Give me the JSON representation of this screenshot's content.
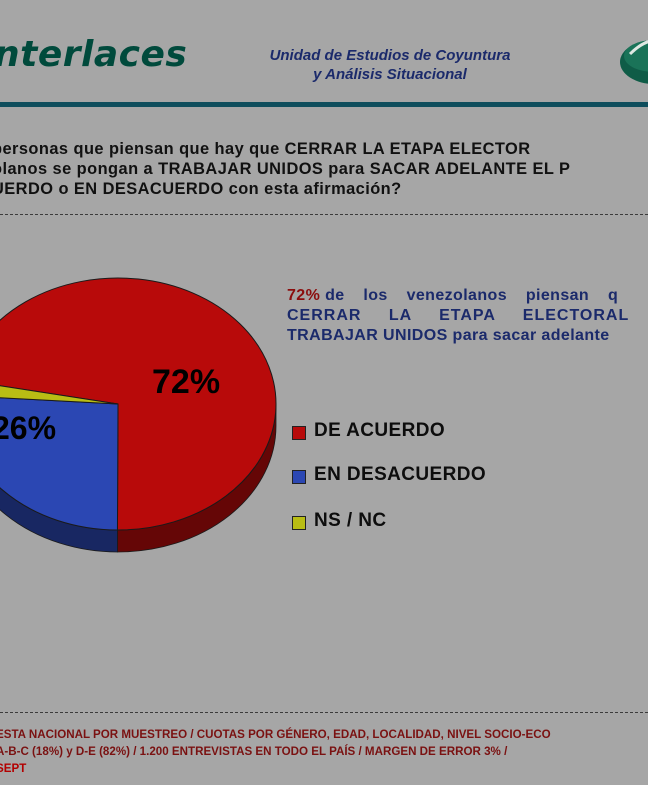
{
  "header": {
    "logo_text": "nterlaces",
    "unit_line1": "Unidad de Estudios de Coyuntura",
    "unit_line2": "y Análisis Situacional"
  },
  "question": {
    "line1": "personas que piensan que hay que CERRAR LA ETAPA ELECTOR",
    "line2": "olanos se pongan a TRABAJAR UNIDOS para SACAR ADELANTE EL P",
    "line3": "UERDO o EN DESACUERDO con esta afirmación?"
  },
  "annotation": {
    "percent": "72%",
    "line1_rest": "de los venezolanos piensan q",
    "line2": "CERRAR LA ETAPA ELECTORAL y",
    "line3": "TRABAJAR UNIDOS para sacar adelante"
  },
  "colors": {
    "background": "#a6a6a6",
    "de_acuerdo": "#b80a0a",
    "en_desacuerdo": "#2b47b3",
    "ns_nc": "#b9bd14",
    "header_rule": "#0e4d5c",
    "footer_text": "#7a1111"
  },
  "chart_data": {
    "type": "pie",
    "slices": [
      {
        "label": "DE ACUERDO",
        "value": 72,
        "color": "#b80a0a",
        "display": "72%"
      },
      {
        "label": "EN DESACUERDO",
        "value": 26,
        "color": "#2b47b3",
        "display": "26%"
      },
      {
        "label": "NS / NC",
        "value": 2,
        "color": "#b9bd14",
        "display": ""
      }
    ],
    "legend": [
      "DE ACUERDO",
      "EN DESACUERDO",
      "NS / NC"
    ],
    "legend_position": "right"
  },
  "footer": {
    "line1": "ESTA NACIONAL POR MUESTREO / CUOTAS POR GÉNERO, EDAD, LOCALIDAD, NIVEL SOCIO-ECO",
    "line2": "A-B-C (18%) y D-E (82%) / 1.200 ENTREVISTAS EN TODO EL PAÍS / MARGEN DE ERROR 3% /",
    "line2_highlight": "SEPT"
  }
}
